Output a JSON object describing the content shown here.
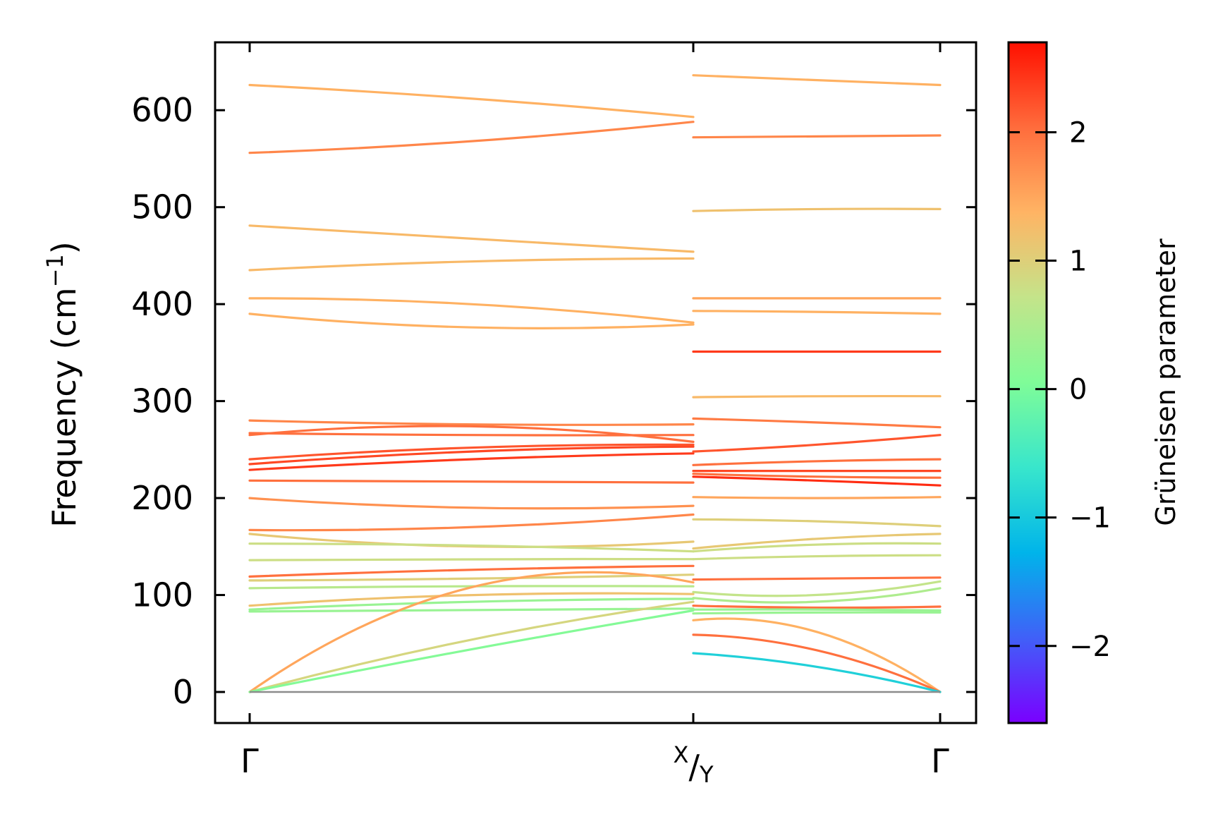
{
  "chart_data": {
    "type": "line",
    "title": "",
    "xlabel": "",
    "ylabel": "Frequency (cm",
    "ylabel_superscript": "−1",
    "ylabel_close": ")",
    "ylim": [
      -32,
      670
    ],
    "yticks": [
      {
        "value": 0,
        "label": "0"
      },
      {
        "value": 100,
        "label": "100"
      },
      {
        "value": 200,
        "label": "200"
      },
      {
        "value": 300,
        "label": "300"
      },
      {
        "value": 400,
        "label": "400"
      },
      {
        "value": 500,
        "label": "500"
      },
      {
        "value": 600,
        "label": "600"
      }
    ],
    "kpath": {
      "segment1_label_start": "Γ",
      "mid_label_main": "X",
      "mid_label_slash": "/",
      "mid_label_sub": "Y",
      "segment2_label_end": "Γ"
    },
    "zero_line": true,
    "grid": false,
    "colorbar": {
      "label": "Grüneisen parameter",
      "range": [
        -2.6,
        2.7
      ],
      "colormap": "rainbow",
      "ticks": [
        {
          "value": -2,
          "label": "−2"
        },
        {
          "value": -1,
          "label": "−1"
        },
        {
          "value": 0,
          "label": "0"
        },
        {
          "value": 1,
          "label": "1"
        },
        {
          "value": 2,
          "label": "2"
        }
      ]
    },
    "segments": [
      {
        "name": "Γ-X",
        "bands": [
          {
            "values": [
              626,
              612,
              593
            ],
            "gamma": 1.4
          },
          {
            "values": [
              556,
              568,
              588
            ],
            "gamma": 1.8
          },
          {
            "values": [
              481,
              468,
              454
            ],
            "gamma": 1.3
          },
          {
            "values": [
              435,
              444,
              447
            ],
            "gamma": 1.3
          },
          {
            "values": [
              406,
              400,
              381
            ],
            "gamma": 1.4
          },
          {
            "values": [
              390,
              376,
              379
            ],
            "gamma": 1.4
          },
          {
            "values": [
              280,
              276,
              276
            ],
            "gamma": 1.8
          },
          {
            "values": [
              267,
              265,
              265
            ],
            "gamma": 2.0
          },
          {
            "values": [
              265,
              274,
              258
            ],
            "gamma": 2.0
          },
          {
            "values": [
              240,
              252,
              255
            ],
            "gamma": 2.2
          },
          {
            "values": [
              235,
              248,
              253
            ],
            "gamma": 2.3
          },
          {
            "values": [
              229,
              240,
              246
            ],
            "gamma": 2.4
          },
          {
            "values": [
              218,
              217,
              216
            ],
            "gamma": 2.0
          },
          {
            "values": [
              200,
              190,
              192
            ],
            "gamma": 1.7
          },
          {
            "values": [
              167,
              170,
              183
            ],
            "gamma": 1.8
          },
          {
            "values": [
              163,
              150,
              155
            ],
            "gamma": 1.1
          },
          {
            "values": [
              153,
              151,
              145
            ],
            "gamma": 0.8
          },
          {
            "values": [
              136,
              137,
              137
            ],
            "gamma": 0.8
          },
          {
            "values": [
              119,
              126,
              130
            ],
            "gamma": 2.0
          },
          {
            "values": [
              115,
              117,
              121
            ],
            "gamma": 1.0
          },
          {
            "values": [
              107,
              109,
              109
            ],
            "gamma": 0.6
          },
          {
            "values": [
              89,
              100,
              101
            ],
            "gamma": 1.2
          },
          {
            "values": [
              85,
              93,
              96
            ],
            "gamma": 0.3
          },
          {
            "values": [
              83,
              84,
              86
            ],
            "gamma": 0.3
          },
          {
            "values": [
              0,
              108,
              113
            ],
            "gamma": 1.5
          },
          {
            "values": [
              0,
              54,
              93
            ],
            "gamma": 0.9
          },
          {
            "values": [
              0,
              44,
              84
            ],
            "gamma": 0.1
          }
        ]
      },
      {
        "name": "Y-Γ",
        "bands": [
          {
            "values": [
              636,
              631,
              626
            ],
            "gamma": 1.4
          },
          {
            "values": [
              572,
              573,
              574
            ],
            "gamma": 1.8
          },
          {
            "values": [
              496,
              498,
              498
            ],
            "gamma": 1.2
          },
          {
            "values": [
              406,
              406,
              406
            ],
            "gamma": 1.5
          },
          {
            "values": [
              393,
              392,
              390
            ],
            "gamma": 1.4
          },
          {
            "values": [
              351,
              351,
              351
            ],
            "gamma": 2.4
          },
          {
            "values": [
              304,
              305,
              305
            ],
            "gamma": 1.3
          },
          {
            "values": [
              282,
              278,
              273
            ],
            "gamma": 1.9
          },
          {
            "values": [
              248,
              255,
              265
            ],
            "gamma": 2.2
          },
          {
            "values": [
              234,
              238,
              240
            ],
            "gamma": 2.0
          },
          {
            "values": [
              228,
              228,
              228
            ],
            "gamma": 2.3
          },
          {
            "values": [
              225,
              222,
              221
            ],
            "gamma": 2.0
          },
          {
            "values": [
              222,
              218,
              213
            ],
            "gamma": 2.5
          },
          {
            "values": [
              201,
              200,
              201
            ],
            "gamma": 1.5
          },
          {
            "values": [
              178,
              176,
              171
            ],
            "gamma": 1.0
          },
          {
            "values": [
              148,
              158,
              163
            ],
            "gamma": 1.1
          },
          {
            "values": [
              145,
              152,
              153
            ],
            "gamma": 0.8
          },
          {
            "values": [
              137,
              140,
              141
            ],
            "gamma": 0.8
          },
          {
            "values": [
              116,
              117,
              118
            ],
            "gamma": 2.0
          },
          {
            "values": [
              103,
              100,
              114
            ],
            "gamma": 0.7
          },
          {
            "values": [
              97,
              93,
              107
            ],
            "gamma": 0.5
          },
          {
            "values": [
              89,
              87,
              88
            ],
            "gamma": 2.0
          },
          {
            "values": [
              85,
              85,
              84
            ],
            "gamma": 0.3
          },
          {
            "values": [
              81,
              82,
              82
            ],
            "gamma": 0.3
          },
          {
            "values": [
              74,
              62,
              0
            ],
            "gamma": 1.4
          },
          {
            "values": [
              59,
              43,
              0
            ],
            "gamma": 2.0
          },
          {
            "values": [
              40,
              26,
              0
            ],
            "gamma": -0.9
          }
        ]
      }
    ]
  }
}
